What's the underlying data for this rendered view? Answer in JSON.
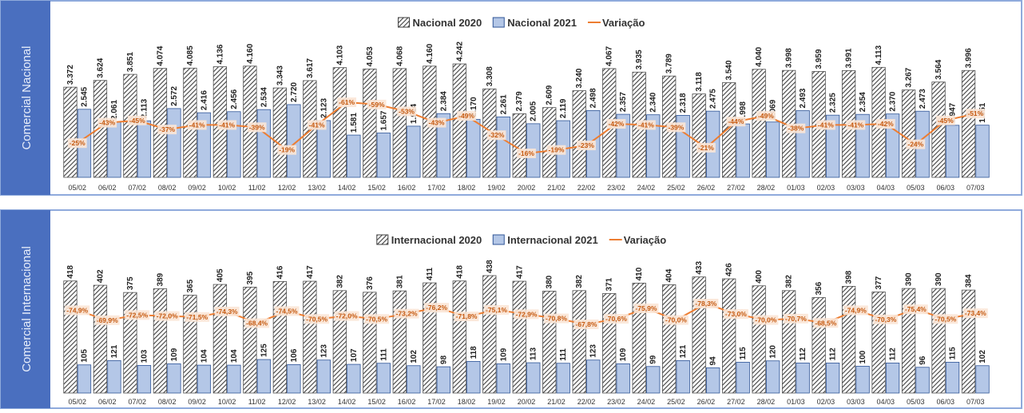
{
  "chart_data": [
    {
      "type": "combo",
      "title": "Comercial Nacional",
      "categories": [
        "05/02",
        "06/02",
        "07/02",
        "08/02",
        "09/02",
        "10/02",
        "11/02",
        "12/02",
        "13/02",
        "14/02",
        "15/02",
        "16/02",
        "17/02",
        "18/02",
        "19/02",
        "20/02",
        "21/02",
        "22/02",
        "23/02",
        "24/02",
        "25/02",
        "26/02",
        "27/02",
        "28/02",
        "01/03",
        "02/03",
        "03/03",
        "04/03",
        "05/03",
        "06/03",
        "07/03"
      ],
      "series": [
        {
          "name": "Nacional 2020",
          "color": "#404040",
          "hatch": true,
          "values": [
            3372,
            3624,
            3851,
            4074,
            4085,
            4136,
            4160,
            3343,
            3617,
            4103,
            4053,
            4068,
            4160,
            4242,
            3308,
            2379,
            2609,
            3240,
            4067,
            3935,
            3789,
            3118,
            3540,
            4040,
            3998,
            3959,
            3991,
            4113,
            3267,
            3564,
            3996
          ],
          "value_labels": [
            "3.372",
            "3.624",
            "3.851",
            "4.074",
            "4.085",
            "4.136",
            "4.160",
            "3.343",
            "3.617",
            "4.103",
            "4.053",
            "4.068",
            "4.160",
            "4.242",
            "3.308",
            "2.379",
            "2.609",
            "3.240",
            "4.067",
            "3.935",
            "3.789",
            "3.118",
            "3.540",
            "4.040",
            "3.998",
            "3.959",
            "3.991",
            "4.113",
            "3.267",
            "3.564",
            "3.996"
          ]
        },
        {
          "name": "Nacional 2021",
          "color": "#b4c7e7",
          "values": [
            2545,
            2061,
            2113,
            2572,
            2416,
            2456,
            2534,
            2720,
            2123,
            1581,
            1657,
            1914,
            2384,
            2170,
            2261,
            2005,
            2119,
            2498,
            2357,
            2340,
            2318,
            2475,
            1998,
            2069,
            2493,
            2325,
            2354,
            2370,
            2473,
            1947,
            1951
          ],
          "value_labels": [
            "2.545",
            "2.061",
            "2.113",
            "2.572",
            "2.416",
            "2.456",
            "2.534",
            "2.720",
            "2.123",
            "1.581",
            "1.657",
            "1.914",
            "2.384",
            "2.170",
            "2.261",
            "2.005",
            "2.119",
            "2.498",
            "2.357",
            "2.340",
            "2.318",
            "2.475",
            "1.998",
            "2.069",
            "2.493",
            "2.325",
            "2.354",
            "2.370",
            "2.473",
            "1.947",
            "1.951"
          ]
        },
        {
          "name": "Variação",
          "type": "line",
          "color": "#ed7d31",
          "values": [
            -25,
            -43,
            -45,
            -37,
            -41,
            -41,
            -39,
            -19,
            -41,
            -61,
            -59,
            -53,
            -43,
            -49,
            -32,
            -16,
            -19,
            -23,
            -42,
            -41,
            -39,
            -21,
            -44,
            -49,
            -38,
            -41,
            -41,
            -42,
            -24,
            -45,
            -51
          ],
          "value_labels": [
            "-25%",
            "-43%",
            "-45%",
            "-37%",
            "-41%",
            "-41%",
            "-39%",
            "-19%",
            "-41%",
            "-61%",
            "-59%",
            "-53%",
            "-43%",
            "-49%",
            "-32%",
            "-16%",
            "-19%",
            "-23%",
            "-42%",
            "-41%",
            "-39%",
            "-21%",
            "-44%",
            "-49%",
            "-38%",
            "-41%",
            "-41%",
            "-42%",
            "-24%",
            "-45%",
            "-51%"
          ]
        }
      ]
    },
    {
      "type": "combo",
      "title": "Comercial Internacional",
      "categories": [
        "05/02",
        "06/02",
        "07/02",
        "08/02",
        "09/02",
        "10/02",
        "11/02",
        "12/02",
        "13/02",
        "14/02",
        "15/02",
        "16/02",
        "17/02",
        "18/02",
        "19/02",
        "20/02",
        "21/02",
        "22/02",
        "23/02",
        "24/02",
        "25/02",
        "26/02",
        "27/02",
        "28/02",
        "01/03",
        "02/03",
        "03/03",
        "04/03",
        "05/03",
        "06/03",
        "07/03"
      ],
      "series": [
        {
          "name": "Internacional 2020",
          "color": "#404040",
          "hatch": true,
          "values": [
            418,
            402,
            375,
            389,
            365,
            405,
            395,
            416,
            417,
            382,
            376,
            381,
            411,
            418,
            438,
            417,
            380,
            382,
            371,
            410,
            404,
            433,
            426,
            400,
            382,
            356,
            398,
            377,
            390,
            390,
            384
          ]
        },
        {
          "name": "Internacional 2021",
          "color": "#b4c7e7",
          "values": [
            105,
            121,
            103,
            109,
            104,
            104,
            125,
            106,
            123,
            107,
            111,
            102,
            98,
            118,
            109,
            113,
            111,
            123,
            109,
            99,
            121,
            94,
            115,
            120,
            112,
            112,
            100,
            112,
            96,
            115,
            102
          ]
        },
        {
          "name": "Variação",
          "type": "line",
          "color": "#ed7d31",
          "values": [
            -74.9,
            -69.9,
            -72.5,
            -72.0,
            -71.5,
            -74.3,
            -68.4,
            -74.5,
            -70.5,
            -72.0,
            -70.5,
            -73.2,
            -76.2,
            -71.8,
            -75.1,
            -72.9,
            -70.8,
            -67.8,
            -70.6,
            -75.9,
            -70.0,
            -78.3,
            -73.0,
            -70.0,
            -70.7,
            -68.5,
            -74.9,
            -70.3,
            -75.4,
            -70.5,
            -73.4
          ],
          "value_labels": [
            "-74,9%",
            "-69,9%",
            "-72,5%",
            "-72,0%",
            "-71,5%",
            "-74,3%",
            "-68,4%",
            "-74,5%",
            "-70,5%",
            "-72,0%",
            "-70,5%",
            "-73,2%",
            "-76,2%",
            "-71,8%",
            "-75,1%",
            "-72,9%",
            "-70,8%",
            "-67,8%",
            "-70,6%",
            "-75,9%",
            "-70,0%",
            "-78,3%",
            "-73,0%",
            "-70,0%",
            "-70,7%",
            "-68,5%",
            "-74,9%",
            "-70,3%",
            "-75,4%",
            "-70,5%",
            "-73,4%"
          ]
        }
      ]
    }
  ]
}
